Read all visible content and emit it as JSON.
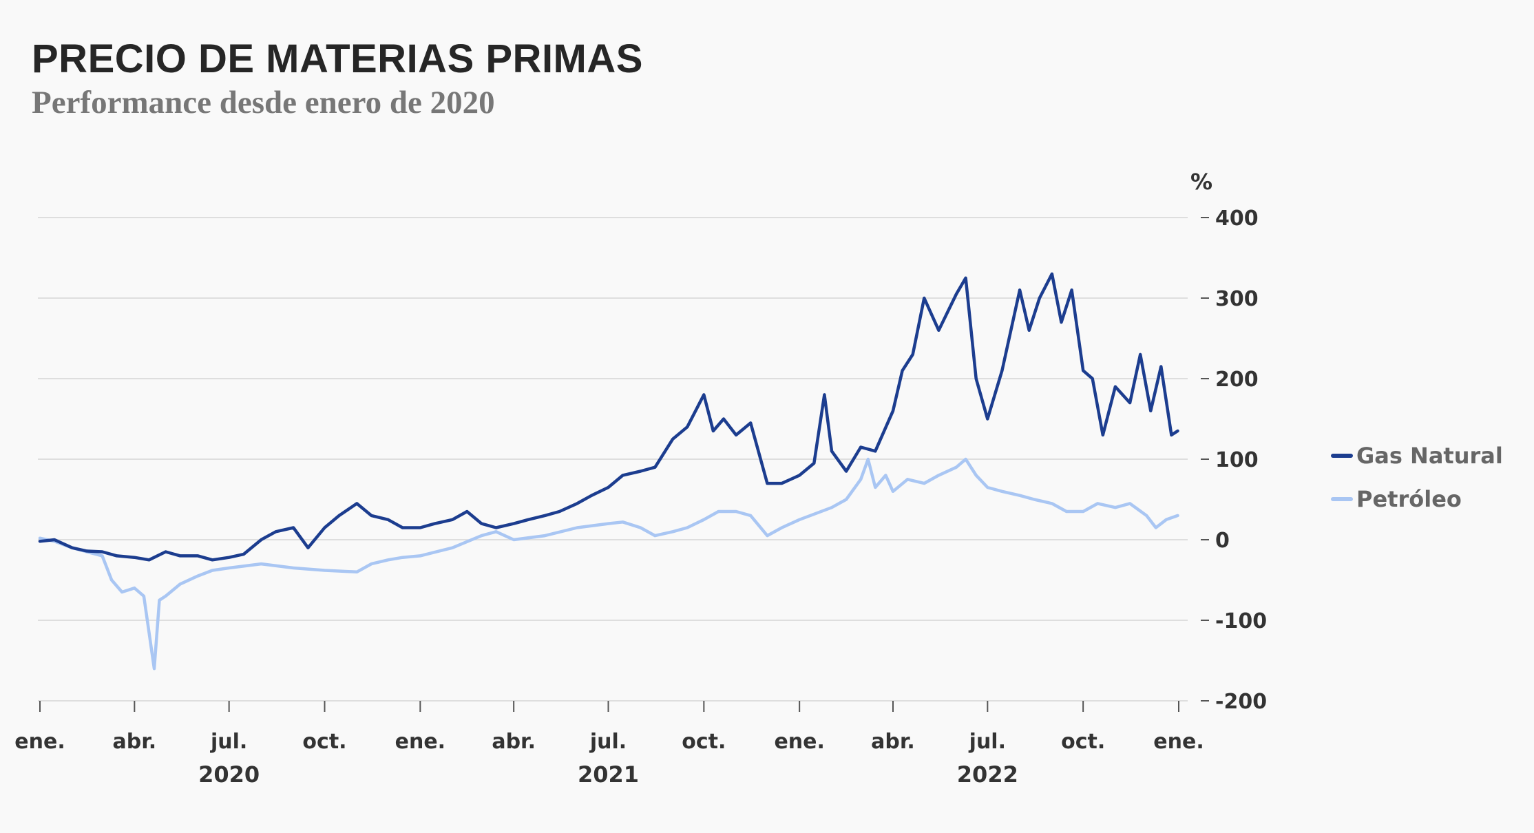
{
  "chart_data": {
    "type": "line",
    "title": "PRECIO DE MATERIAS PRIMAS",
    "subtitle": "Performance desde enero de 2020",
    "y_unit": "%",
    "ylim": [
      -200,
      400
    ],
    "y_ticks": [
      400,
      300,
      200,
      100,
      0,
      -100,
      -200
    ],
    "y_tick_labels": [
      "400",
      "300",
      "200",
      "100",
      "0",
      "-100",
      "-200"
    ],
    "x_range": [
      "2020-01",
      "2023-01"
    ],
    "x_ticks": [
      {
        "x": "2020-01",
        "label": "ene."
      },
      {
        "x": "2020-04",
        "label": "abr."
      },
      {
        "x": "2020-07",
        "label": "jul."
      },
      {
        "x": "2020-10",
        "label": "oct."
      },
      {
        "x": "2021-01",
        "label": "ene."
      },
      {
        "x": "2021-04",
        "label": "abr."
      },
      {
        "x": "2021-07",
        "label": "jul."
      },
      {
        "x": "2021-10",
        "label": "oct."
      },
      {
        "x": "2022-01",
        "label": "ene."
      },
      {
        "x": "2022-04",
        "label": "abr."
      },
      {
        "x": "2022-07",
        "label": "jul."
      },
      {
        "x": "2022-10",
        "label": "oct."
      },
      {
        "x": "2023-01",
        "label": "ene."
      }
    ],
    "year_labels": [
      {
        "x": "2020-07",
        "label": "2020"
      },
      {
        "x": "2021-07",
        "label": "2021"
      },
      {
        "x": "2022-07",
        "label": "2022"
      }
    ],
    "grid": true,
    "legend_position": "right",
    "series": [
      {
        "name": "Gas Natural",
        "color": "#1c3d8f",
        "points": [
          [
            "2020-01-01",
            -2
          ],
          [
            "2020-01-15",
            0
          ],
          [
            "2020-02-01",
            -10
          ],
          [
            "2020-02-15",
            -14
          ],
          [
            "2020-03-01",
            -15
          ],
          [
            "2020-03-15",
            -20
          ],
          [
            "2020-04-01",
            -22
          ],
          [
            "2020-04-15",
            -25
          ],
          [
            "2020-05-01",
            -15
          ],
          [
            "2020-05-15",
            -20
          ],
          [
            "2020-06-01",
            -20
          ],
          [
            "2020-06-15",
            -25
          ],
          [
            "2020-07-01",
            -22
          ],
          [
            "2020-07-15",
            -18
          ],
          [
            "2020-08-01",
            0
          ],
          [
            "2020-08-15",
            10
          ],
          [
            "2020-09-01",
            15
          ],
          [
            "2020-09-15",
            -10
          ],
          [
            "2020-10-01",
            15
          ],
          [
            "2020-10-15",
            30
          ],
          [
            "2020-11-01",
            45
          ],
          [
            "2020-11-15",
            30
          ],
          [
            "2020-12-01",
            25
          ],
          [
            "2020-12-15",
            15
          ],
          [
            "2021-01-01",
            15
          ],
          [
            "2021-01-15",
            20
          ],
          [
            "2021-02-01",
            25
          ],
          [
            "2021-02-15",
            35
          ],
          [
            "2021-03-01",
            20
          ],
          [
            "2021-03-15",
            15
          ],
          [
            "2021-04-01",
            20
          ],
          [
            "2021-04-15",
            25
          ],
          [
            "2021-05-01",
            30
          ],
          [
            "2021-05-15",
            35
          ],
          [
            "2021-06-01",
            45
          ],
          [
            "2021-06-15",
            55
          ],
          [
            "2021-07-01",
            65
          ],
          [
            "2021-07-15",
            80
          ],
          [
            "2021-08-01",
            85
          ],
          [
            "2021-08-15",
            90
          ],
          [
            "2021-09-01",
            125
          ],
          [
            "2021-09-15",
            140
          ],
          [
            "2021-10-01",
            180
          ],
          [
            "2021-10-10",
            135
          ],
          [
            "2021-10-20",
            150
          ],
          [
            "2021-11-01",
            130
          ],
          [
            "2021-11-15",
            145
          ],
          [
            "2021-12-01",
            70
          ],
          [
            "2021-12-15",
            70
          ],
          [
            "2022-01-01",
            80
          ],
          [
            "2022-01-15",
            95
          ],
          [
            "2022-01-25",
            180
          ],
          [
            "2022-02-01",
            110
          ],
          [
            "2022-02-15",
            85
          ],
          [
            "2022-03-01",
            115
          ],
          [
            "2022-03-15",
            110
          ],
          [
            "2022-04-01",
            160
          ],
          [
            "2022-04-10",
            210
          ],
          [
            "2022-04-20",
            230
          ],
          [
            "2022-05-01",
            300
          ],
          [
            "2022-05-15",
            260
          ],
          [
            "2022-06-01",
            305
          ],
          [
            "2022-06-10",
            325
          ],
          [
            "2022-06-20",
            200
          ],
          [
            "2022-07-01",
            150
          ],
          [
            "2022-07-15",
            210
          ],
          [
            "2022-08-01",
            310
          ],
          [
            "2022-08-10",
            260
          ],
          [
            "2022-08-20",
            300
          ],
          [
            "2022-09-01",
            330
          ],
          [
            "2022-09-10",
            270
          ],
          [
            "2022-09-20",
            310
          ],
          [
            "2022-10-01",
            210
          ],
          [
            "2022-10-10",
            200
          ],
          [
            "2022-10-20",
            130
          ],
          [
            "2022-11-01",
            190
          ],
          [
            "2022-11-15",
            170
          ],
          [
            "2022-11-25",
            230
          ],
          [
            "2022-12-05",
            160
          ],
          [
            "2022-12-15",
            215
          ],
          [
            "2022-12-25",
            130
          ],
          [
            "2022-12-31",
            135
          ]
        ]
      },
      {
        "name": "Petróleo",
        "color": "#a9c6f3",
        "points": [
          [
            "2020-01-01",
            2
          ],
          [
            "2020-01-15",
            -2
          ],
          [
            "2020-02-01",
            -10
          ],
          [
            "2020-02-15",
            -15
          ],
          [
            "2020-03-01",
            -20
          ],
          [
            "2020-03-10",
            -50
          ],
          [
            "2020-03-20",
            -65
          ],
          [
            "2020-04-01",
            -60
          ],
          [
            "2020-04-10",
            -70
          ],
          [
            "2020-04-20",
            -160
          ],
          [
            "2020-04-25",
            -75
          ],
          [
            "2020-05-01",
            -70
          ],
          [
            "2020-05-15",
            -55
          ],
          [
            "2020-06-01",
            -45
          ],
          [
            "2020-06-15",
            -38
          ],
          [
            "2020-07-01",
            -35
          ],
          [
            "2020-08-01",
            -30
          ],
          [
            "2020-09-01",
            -35
          ],
          [
            "2020-10-01",
            -38
          ],
          [
            "2020-11-01",
            -40
          ],
          [
            "2020-11-15",
            -30
          ],
          [
            "2020-12-01",
            -25
          ],
          [
            "2020-12-15",
            -22
          ],
          [
            "2021-01-01",
            -20
          ],
          [
            "2021-02-01",
            -10
          ],
          [
            "2021-03-01",
            5
          ],
          [
            "2021-03-15",
            10
          ],
          [
            "2021-04-01",
            0
          ],
          [
            "2021-05-01",
            5
          ],
          [
            "2021-06-01",
            15
          ],
          [
            "2021-07-01",
            20
          ],
          [
            "2021-07-15",
            22
          ],
          [
            "2021-08-01",
            15
          ],
          [
            "2021-08-15",
            5
          ],
          [
            "2021-09-01",
            10
          ],
          [
            "2021-09-15",
            15
          ],
          [
            "2021-10-01",
            25
          ],
          [
            "2021-10-15",
            35
          ],
          [
            "2021-11-01",
            35
          ],
          [
            "2021-11-15",
            30
          ],
          [
            "2021-12-01",
            5
          ],
          [
            "2021-12-15",
            15
          ],
          [
            "2022-01-01",
            25
          ],
          [
            "2022-02-01",
            40
          ],
          [
            "2022-02-15",
            50
          ],
          [
            "2022-03-01",
            75
          ],
          [
            "2022-03-08",
            100
          ],
          [
            "2022-03-15",
            65
          ],
          [
            "2022-03-25",
            80
          ],
          [
            "2022-04-01",
            60
          ],
          [
            "2022-04-15",
            75
          ],
          [
            "2022-05-01",
            70
          ],
          [
            "2022-05-15",
            80
          ],
          [
            "2022-06-01",
            90
          ],
          [
            "2022-06-10",
            100
          ],
          [
            "2022-06-20",
            80
          ],
          [
            "2022-07-01",
            65
          ],
          [
            "2022-07-15",
            60
          ],
          [
            "2022-08-01",
            55
          ],
          [
            "2022-08-15",
            50
          ],
          [
            "2022-09-01",
            45
          ],
          [
            "2022-09-15",
            35
          ],
          [
            "2022-10-01",
            35
          ],
          [
            "2022-10-15",
            45
          ],
          [
            "2022-11-01",
            40
          ],
          [
            "2022-11-15",
            45
          ],
          [
            "2022-12-01",
            30
          ],
          [
            "2022-12-10",
            15
          ],
          [
            "2022-12-20",
            25
          ],
          [
            "2022-12-31",
            30
          ]
        ]
      }
    ]
  }
}
